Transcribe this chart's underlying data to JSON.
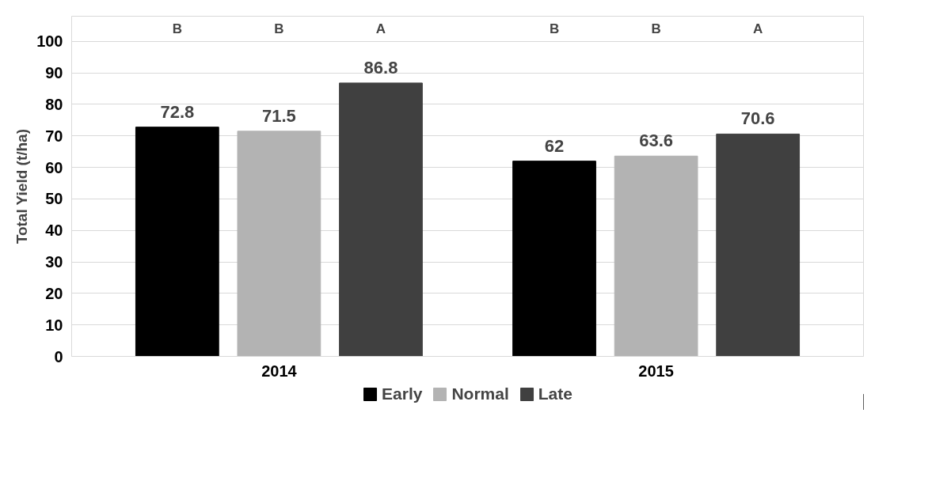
{
  "chart_data": {
    "type": "bar",
    "categories": [
      "2014",
      "2015"
    ],
    "ylabel": "Total Yield (t/ha)",
    "series": [
      {
        "name": "Early",
        "color": "#000000",
        "values": [
          72.8,
          62
        ]
      },
      {
        "name": "Normal",
        "color": "#b3b3b3",
        "values": [
          71.5,
          63.6
        ]
      },
      {
        "name": "Late",
        "color": "#404040",
        "values": [
          86.8,
          70.6
        ]
      }
    ],
    "annotations": [
      "B",
      "B",
      "A",
      "B",
      "B",
      "A"
    ],
    "ylim": [
      0,
      108
    ],
    "yticks": [
      0,
      10,
      20,
      30,
      40,
      50,
      60,
      70,
      80,
      90,
      100
    ],
    "grid": "y",
    "legend": "bottom",
    "data_labels": true
  }
}
